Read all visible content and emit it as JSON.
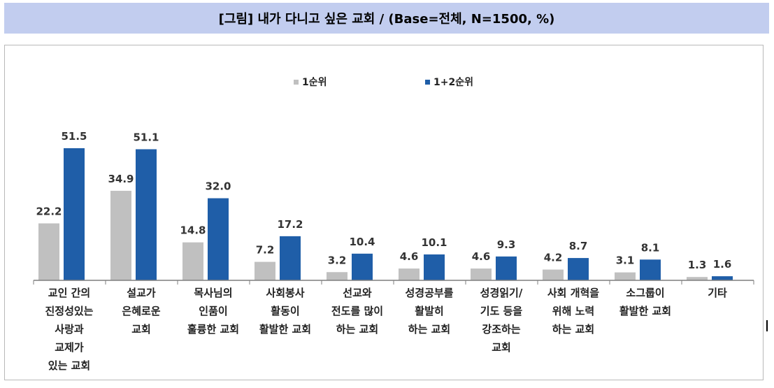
{
  "title": "[그림] 내가 다니고 싶은 교회 / (Base=전체, N=1500, %)",
  "colors": {
    "series1": "#c0c0c0",
    "series2": "#1f5ea8",
    "title_band": "#c2cdef"
  },
  "chart_data": {
    "type": "bar",
    "legend_position": "top-center",
    "grid": false,
    "categories": [
      [
        "교인 간의",
        "진정성있는",
        "사랑과",
        "교제가",
        "있는 교회"
      ],
      [
        "설교가",
        "은혜로운",
        "교회"
      ],
      [
        "목사님의",
        "인품이",
        "훌륭한 교회"
      ],
      [
        "사회봉사",
        "활동이",
        "활발한 교회"
      ],
      [
        "선교와",
        "전도를 많이",
        "하는 교회"
      ],
      [
        "성경공부를",
        "활발히",
        "하는 교회"
      ],
      [
        "성경읽기/",
        "기도 등을",
        "강조하는",
        "교회"
      ],
      [
        "사회 개혁을",
        "위해 노력",
        "하는 교회"
      ],
      [
        "소그룹이",
        "활발한 교회"
      ],
      [
        "기타"
      ]
    ],
    "series": [
      {
        "name": "1순위",
        "values": [
          22.2,
          34.9,
          14.8,
          7.2,
          3.2,
          4.6,
          4.6,
          4.2,
          3.1,
          1.3
        ]
      },
      {
        "name": "1+2순위",
        "values": [
          51.5,
          51.1,
          32.0,
          17.2,
          10.4,
          10.1,
          9.3,
          8.7,
          8.1,
          1.6
        ]
      }
    ],
    "ylim": [
      0,
      60
    ]
  }
}
